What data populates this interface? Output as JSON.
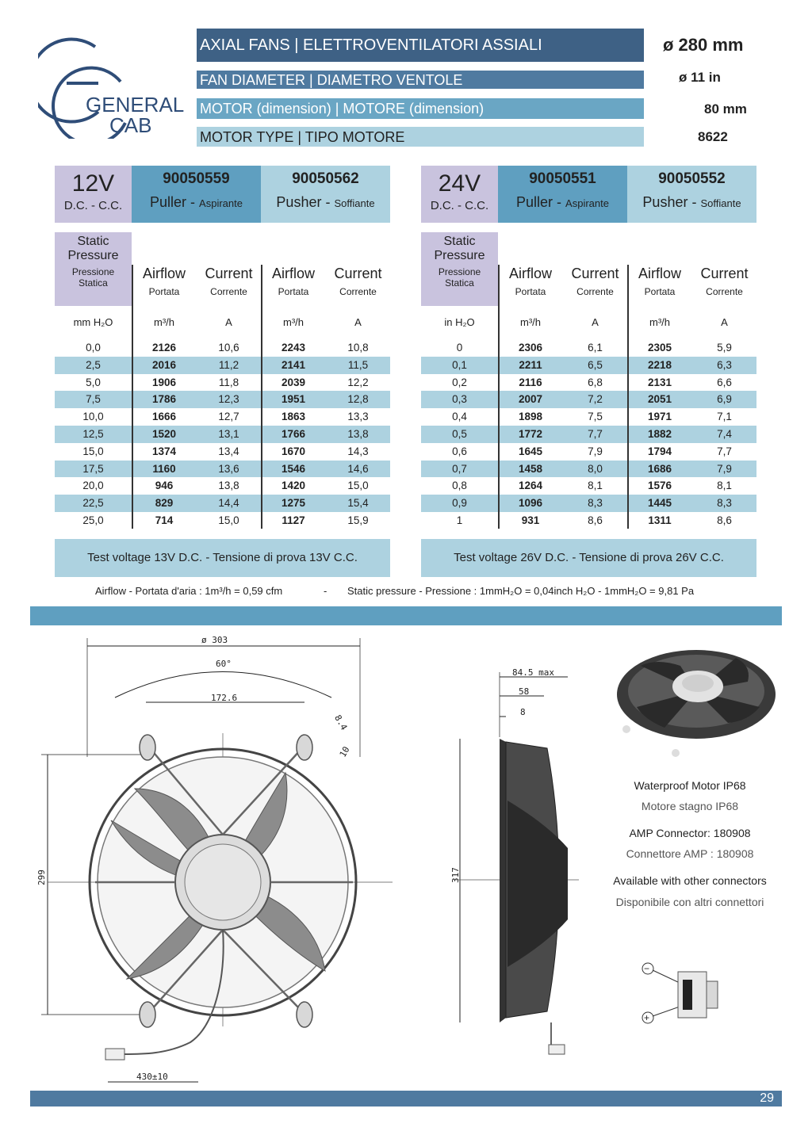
{
  "brand": {
    "line1": "GENERAL",
    "line2": "CAB"
  },
  "header": {
    "title": "AXIAL FANS | ELETTROVENTILATORI ASSIALI",
    "rows": [
      {
        "label": "FAN DIAMETER | DIAMETRO VENTOLE",
        "value": "ø  11  in"
      },
      {
        "label": "MOTOR (dimension) | MOTORE (dimension)",
        "value": "80 mm"
      },
      {
        "label": "MOTOR TYPE | TIPO MOTORE",
        "value": "8622"
      }
    ],
    "diameter": "ø  280  mm"
  },
  "table12": {
    "voltage": "12V",
    "dc": "D.C. - C.C.",
    "model_puller": "90050559",
    "model_pusher": "90050562",
    "puller": "Puller -",
    "puller_it": "Aspirante",
    "pusher": "Pusher -",
    "pusher_it": "Soffiante",
    "static1": "Static",
    "static2": "Pressure",
    "static_it1": "Pressione",
    "static_it2": "Statica",
    "airflow": "Airflow",
    "portata": "Portata",
    "current": "Current",
    "corrente": "Corrente",
    "unit_p": "mm H₂O",
    "unit_q": "m³/h",
    "unit_a": "A",
    "rows": [
      [
        "0,0",
        "2126",
        "10,6",
        "2243",
        "10,8"
      ],
      [
        "2,5",
        "2016",
        "11,2",
        "2141",
        "11,5"
      ],
      [
        "5,0",
        "1906",
        "11,8",
        "2039",
        "12,2"
      ],
      [
        "7,5",
        "1786",
        "12,3",
        "1951",
        "12,8"
      ],
      [
        "10,0",
        "1666",
        "12,7",
        "1863",
        "13,3"
      ],
      [
        "12,5",
        "1520",
        "13,1",
        "1766",
        "13,8"
      ],
      [
        "15,0",
        "1374",
        "13,4",
        "1670",
        "14,3"
      ],
      [
        "17,5",
        "1160",
        "13,6",
        "1546",
        "14,6"
      ],
      [
        "20,0",
        "946",
        "13,8",
        "1420",
        "15,0"
      ],
      [
        "22,5",
        "829",
        "14,4",
        "1275",
        "15,4"
      ],
      [
        "25,0",
        "714",
        "15,0",
        "1127",
        "15,9"
      ]
    ],
    "test": "Test voltage 13V D.C.  - Tensione di prova 13V C.C."
  },
  "table24": {
    "voltage": "24V",
    "dc": "D.C. - C.C.",
    "model_puller": "90050551",
    "model_pusher": "90050552",
    "puller": "Puller -",
    "puller_it": "Aspirante",
    "pusher": "Pusher -",
    "pusher_it": "Soffiante",
    "static1": "Static",
    "static2": "Pressure",
    "static_it1": "Pressione",
    "static_it2": "Statica",
    "airflow": "Airflow",
    "portata": "Portata",
    "current": "Current",
    "corrente": "Corrente",
    "unit_p": "in H₂O",
    "unit_q": "m³/h",
    "unit_a": "A",
    "rows": [
      [
        "0",
        "2306",
        "6,1",
        "2305",
        "5,9"
      ],
      [
        "0,1",
        "2211",
        "6,5",
        "2218",
        "6,3"
      ],
      [
        "0,2",
        "2116",
        "6,8",
        "2131",
        "6,6"
      ],
      [
        "0,3",
        "2007",
        "7,2",
        "2051",
        "6,9"
      ],
      [
        "0,4",
        "1898",
        "7,5",
        "1971",
        "7,1"
      ],
      [
        "0,5",
        "1772",
        "7,7",
        "1882",
        "7,4"
      ],
      [
        "0,6",
        "1645",
        "7,9",
        "1794",
        "7,7"
      ],
      [
        "0,7",
        "1458",
        "8,0",
        "1686",
        "7,9"
      ],
      [
        "0,8",
        "1264",
        "8,1",
        "1576",
        "8,1"
      ],
      [
        "0,9",
        "1096",
        "8,3",
        "1445",
        "8,3"
      ],
      [
        "1",
        "931",
        "8,6",
        "1311",
        "8,6"
      ]
    ],
    "test": "Test voltage 26V D.C.  - Tensione di prova 26V C.C."
  },
  "notes": {
    "airflow": "Airflow - Portata d'aria : 1m³/h = 0,59 cfm",
    "sep": "-",
    "pressure": "Static pressure - Pressione : 1mmH₂O = 0,04inch H₂O - 1mmH₂O = 9,81 Pa"
  },
  "drawing": {
    "d303": "ø 303",
    "a60": "60°",
    "d172": "172.6",
    "d84": "8.4",
    "d10": "10",
    "d299": "299",
    "d430": "430±10",
    "d845": "84.5 max",
    "d58": "58",
    "d8": "8",
    "d317": "317"
  },
  "features": {
    "ip68": "Waterproof Motor  IP68",
    "ip68_it": "Motore stagno  IP68",
    "amp": "AMP Connector: 180908",
    "amp_it": "Connettore AMP : 180908",
    "other": "Available with other connectors",
    "other_it": "Disponibile con altri connettori",
    "minus": "−",
    "plus": "+"
  },
  "footer": {
    "page": "29"
  },
  "colors": {
    "dark": "#3e6185",
    "mid": "#4f7aa0",
    "light": "#add2e0",
    "model": "#5f9fc0",
    "violet": "#c9c3de"
  }
}
